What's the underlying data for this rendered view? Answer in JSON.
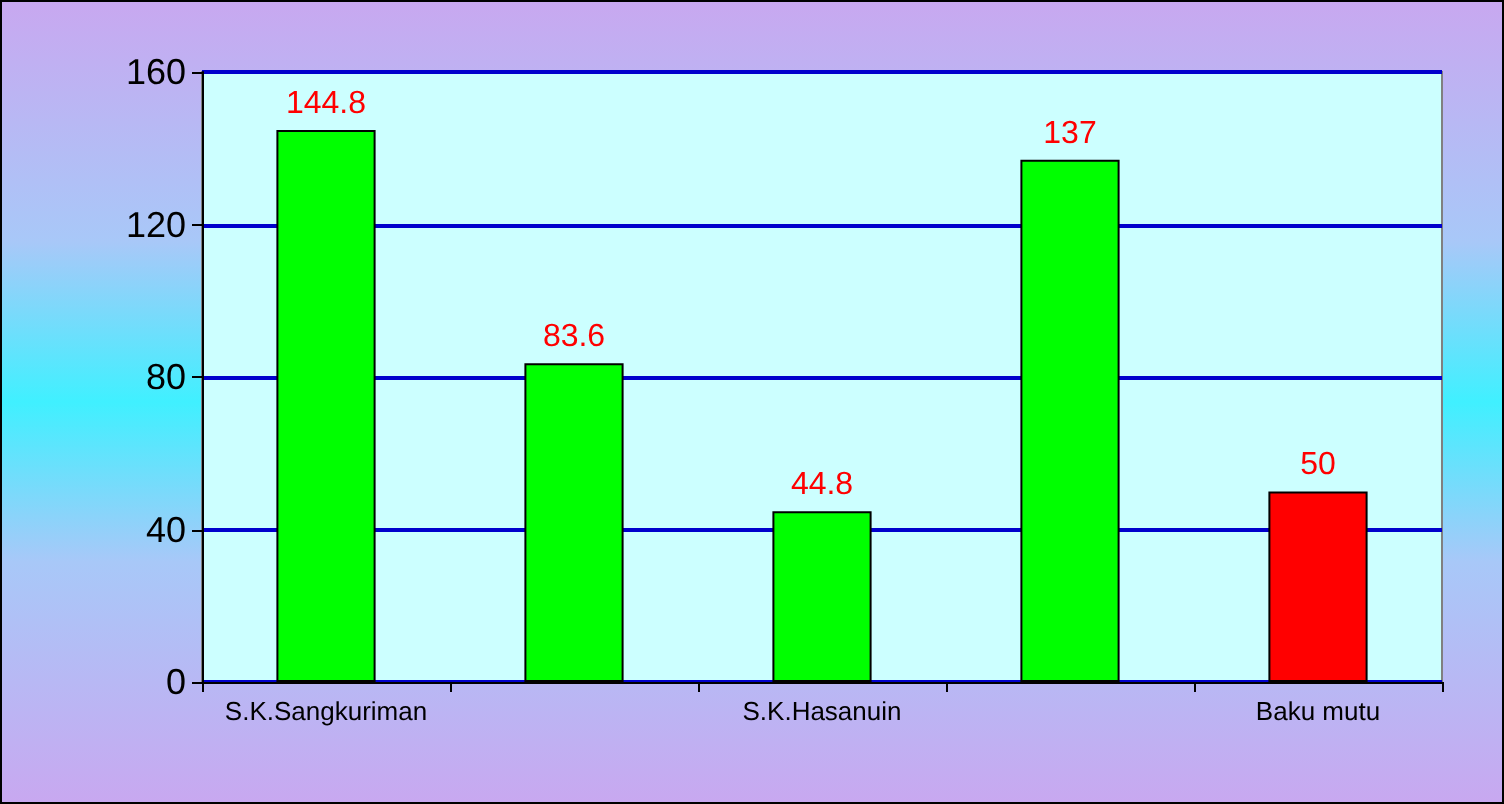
{
  "chart_data": {
    "type": "bar",
    "categories": [
      "S.K.Sangkuriman",
      null,
      "S.K.Hasanuin",
      null,
      "Baku mutu"
    ],
    "values": [
      144.8,
      83.6,
      44.8,
      137,
      50
    ],
    "colors": [
      "#00ff00",
      "#00ff00",
      "#00ff00",
      "#00ff00",
      "#ff0000"
    ],
    "ylim": [
      0,
      160
    ],
    "yticks": [
      0,
      40,
      80,
      120,
      160
    ],
    "grid": "y",
    "data_labels": true
  }
}
